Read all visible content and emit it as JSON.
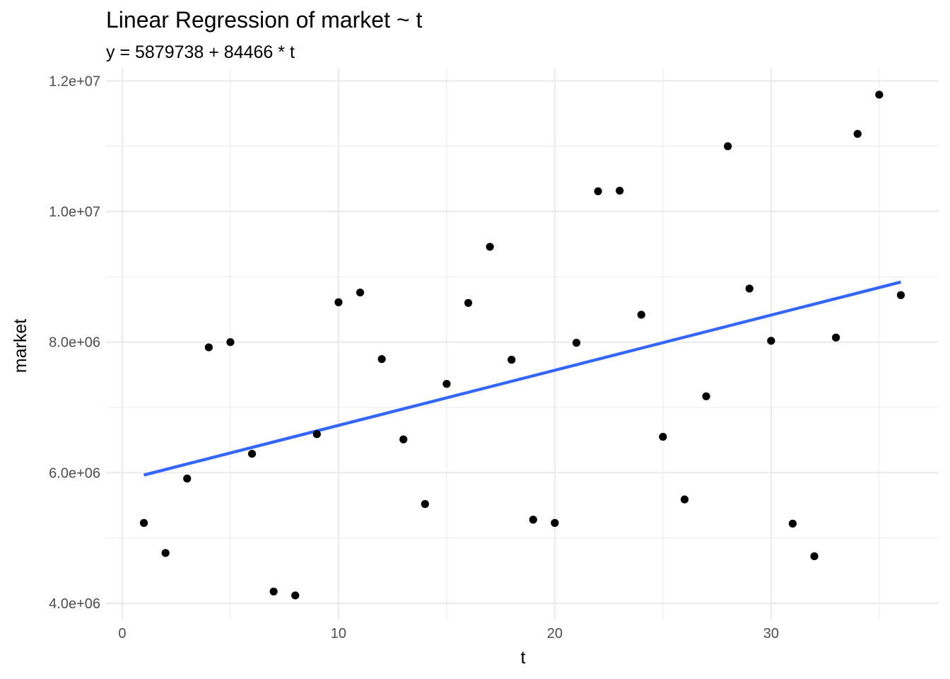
{
  "chart_data": {
    "type": "scatter",
    "title": "Linear Regression of market ~ t",
    "subtitle": "y = 5879738 + 84466 * t",
    "xlabel": "t",
    "ylabel": "market",
    "xlim": [
      -0.75,
      37.75
    ],
    "ylim": [
      3750000,
      12200000
    ],
    "x_ticks": [
      0,
      10,
      20,
      30
    ],
    "x_tick_labels": [
      "0",
      "10",
      "20",
      "30"
    ],
    "x_minor_ticks": [
      5,
      15,
      25,
      35
    ],
    "y_ticks": [
      4000000,
      6000000,
      8000000,
      10000000,
      12000000
    ],
    "y_tick_labels": [
      "4.0e+06",
      "6.0e+06",
      "8.0e+06",
      "1.0e+07",
      "1.2e+07"
    ],
    "y_minor_ticks": [
      5000000,
      7000000,
      9000000,
      11000000
    ],
    "grid": true,
    "points": {
      "x": [
        1,
        2,
        3,
        4,
        5,
        6,
        7,
        8,
        9,
        10,
        11,
        12,
        13,
        14,
        15,
        16,
        17,
        18,
        19,
        20,
        21,
        22,
        23,
        24,
        25,
        26,
        27,
        28,
        29,
        30,
        31,
        32,
        33,
        34,
        35,
        36
      ],
      "y": [
        5230000,
        4770000,
        5910000,
        7920000,
        8000000,
        6290000,
        4180000,
        4120000,
        6590000,
        8610000,
        8760000,
        7740000,
        6510000,
        5520000,
        7360000,
        8600000,
        9460000,
        7730000,
        5280000,
        5230000,
        7990000,
        10310000,
        10320000,
        8420000,
        6550000,
        5590000,
        7170000,
        11000000,
        8820000,
        8020000,
        5220000,
        4720000,
        8070000,
        11190000,
        11790000,
        8720000
      ]
    },
    "regression": {
      "intercept": 5879738,
      "slope": 84466,
      "x_range": [
        1,
        36
      ],
      "color": "#3366FF"
    },
    "point_color": "#000000",
    "grid_color": "#EBEBEB"
  }
}
